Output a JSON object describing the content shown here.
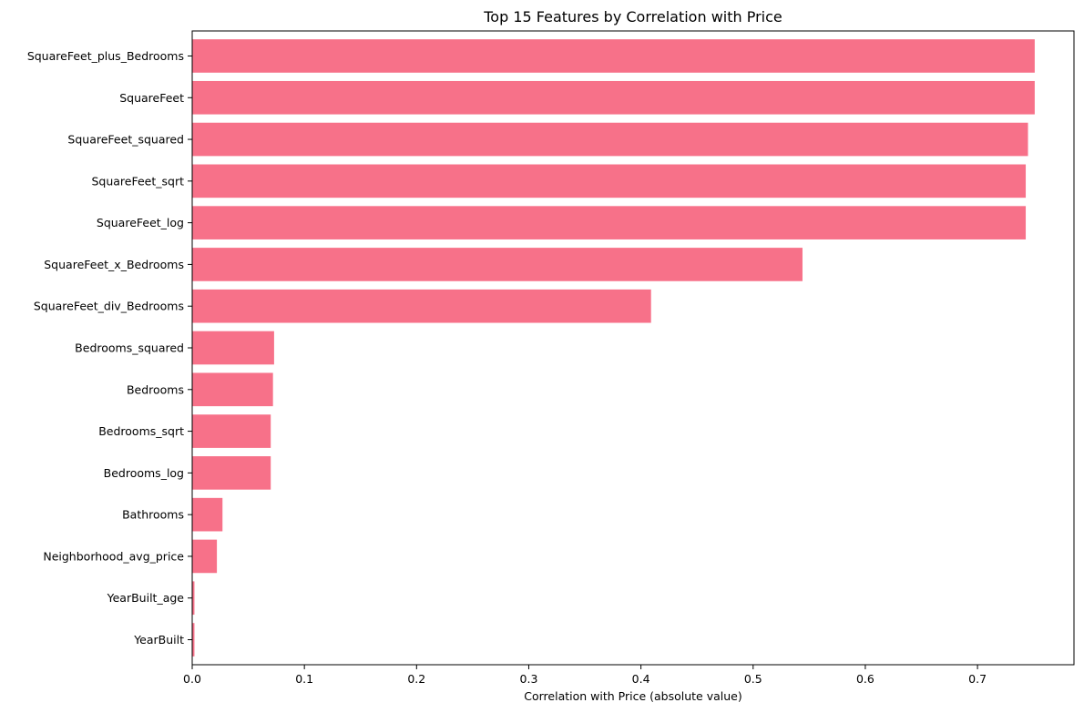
{
  "chart_data": {
    "type": "bar",
    "orientation": "horizontal",
    "title": "Top 15 Features by Correlation with Price",
    "xlabel": "Correlation with Price (absolute value)",
    "ylabel": "",
    "xlim": [
      0,
      0.786
    ],
    "x_ticks": [
      0.0,
      0.1,
      0.2,
      0.3,
      0.4,
      0.5,
      0.6,
      0.7
    ],
    "x_tick_labels": [
      "0.0",
      "0.1",
      "0.2",
      "0.3",
      "0.4",
      "0.5",
      "0.6",
      "0.7"
    ],
    "grid": false,
    "legend": "none",
    "bar_color": "#f77189",
    "categories": [
      "SquareFeet_plus_Bedrooms",
      "SquareFeet",
      "SquareFeet_squared",
      "SquareFeet_sqrt",
      "SquareFeet_log",
      "SquareFeet_x_Bedrooms",
      "SquareFeet_div_Bedrooms",
      "Bedrooms_squared",
      "Bedrooms",
      "Bedrooms_sqrt",
      "Bedrooms_log",
      "Bathrooms",
      "Neighborhood_avg_price",
      "YearBuilt_age",
      "YearBuilt"
    ],
    "values": [
      0.751,
      0.751,
      0.745,
      0.743,
      0.743,
      0.544,
      0.409,
      0.073,
      0.072,
      0.07,
      0.07,
      0.027,
      0.022,
      0.002,
      0.002
    ]
  }
}
